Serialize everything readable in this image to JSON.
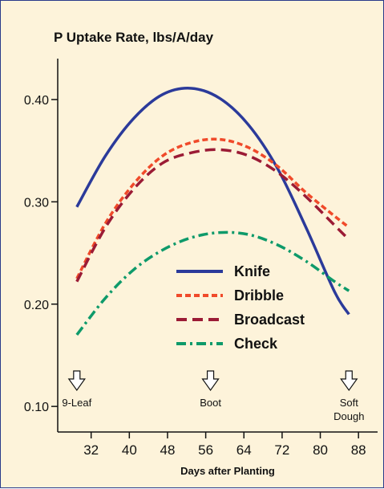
{
  "chart_data": {
    "type": "line",
    "title": "P Uptake Rate, lbs/A/day",
    "xlabel": "Days after Planting",
    "ylabel": "",
    "x_ticks": [
      32,
      40,
      48,
      56,
      64,
      72,
      80,
      88
    ],
    "y_ticks": [
      "0.10",
      "0.20",
      "0.30",
      "0.40"
    ],
    "xlim": [
      25,
      92
    ],
    "ylim": [
      0.075,
      0.44
    ],
    "grid": false,
    "legend_position": "center-right",
    "series": [
      {
        "name": "Knife",
        "color": "#2b3a9a",
        "style": "solid",
        "x": [
          29,
          35,
          41,
          47,
          53,
          59,
          65,
          71,
          77,
          83,
          86
        ],
        "y": [
          0.295,
          0.345,
          0.382,
          0.405,
          0.411,
          0.401,
          0.375,
          0.333,
          0.275,
          0.212,
          0.19
        ]
      },
      {
        "name": "Dribble",
        "color": "#f04a2a",
        "style": "short-dash",
        "x": [
          29,
          35,
          41,
          47,
          53,
          59,
          65,
          71,
          77,
          83,
          86
        ],
        "y": [
          0.225,
          0.279,
          0.318,
          0.345,
          0.358,
          0.361,
          0.353,
          0.335,
          0.309,
          0.286,
          0.275
        ]
      },
      {
        "name": "Broadcast",
        "color": "#9b1b35",
        "style": "dash",
        "x": [
          29,
          35,
          41,
          47,
          53,
          59,
          65,
          71,
          77,
          83,
          86
        ],
        "y": [
          0.222,
          0.275,
          0.313,
          0.338,
          0.348,
          0.351,
          0.345,
          0.329,
          0.305,
          0.277,
          0.263
        ]
      },
      {
        "name": "Check",
        "color": "#0e9a6a",
        "style": "dash-dot",
        "x": [
          29,
          35,
          41,
          47,
          53,
          59,
          65,
          71,
          77,
          83,
          86
        ],
        "y": [
          0.17,
          0.206,
          0.234,
          0.253,
          0.265,
          0.27,
          0.268,
          0.258,
          0.242,
          0.222,
          0.213
        ]
      }
    ],
    "growth_stages": [
      {
        "label": "9-Leaf",
        "x": 29
      },
      {
        "label": "Boot",
        "x": 57
      },
      {
        "label": "Soft Dough",
        "x": 86
      }
    ]
  }
}
